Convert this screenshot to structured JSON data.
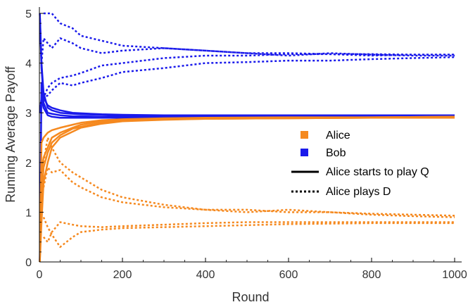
{
  "chart_data": {
    "type": "line",
    "xlabel": "Round",
    "ylabel": "Running Average Payoff",
    "xlim": [
      0,
      1000
    ],
    "ylim": [
      0,
      5
    ],
    "x_ticks": [
      0,
      200,
      400,
      600,
      800,
      1000
    ],
    "y_ticks": [
      0,
      1,
      2,
      3,
      4,
      5
    ],
    "grid": false,
    "legend_position": "center-right",
    "legend": {
      "players": [
        {
          "label": "Alice",
          "color": "#f5891f"
        },
        {
          "label": "Bob",
          "color": "#1a1aeb"
        }
      ],
      "styles": [
        {
          "label": "Alice starts to play Q",
          "dash": "solid"
        },
        {
          "label": "Alice plays D",
          "dash": "dotted"
        }
      ]
    },
    "series": [
      {
        "player": "Bob",
        "style": "solid",
        "x": [
          1,
          5,
          10,
          20,
          30,
          50,
          80,
          100,
          150,
          200,
          300,
          400,
          600,
          800,
          1000
        ],
        "y": [
          5,
          4.0,
          3.4,
          3.1,
          3.05,
          3.0,
          2.98,
          2.97,
          2.96,
          2.95,
          2.94,
          2.94,
          2.94,
          2.94,
          2.94
        ]
      },
      {
        "player": "Bob",
        "style": "solid",
        "x": [
          1,
          5,
          10,
          20,
          30,
          50,
          80,
          100,
          150,
          200,
          300,
          400,
          600,
          800,
          1000
        ],
        "y": [
          0,
          3.6,
          3.2,
          3.0,
          2.98,
          2.95,
          2.93,
          2.93,
          2.92,
          2.92,
          2.92,
          2.92,
          2.92,
          2.92,
          2.92
        ]
      },
      {
        "player": "Bob",
        "style": "solid",
        "x": [
          1,
          5,
          10,
          20,
          30,
          50,
          80,
          100,
          150,
          200,
          300,
          400,
          600,
          800,
          1000
        ],
        "y": [
          5,
          3.9,
          3.3,
          3.15,
          3.1,
          3.05,
          3.0,
          2.99,
          2.97,
          2.96,
          2.95,
          2.95,
          2.95,
          2.95,
          2.95
        ]
      },
      {
        "player": "Bob",
        "style": "solid",
        "x": [
          1,
          5,
          10,
          20,
          30,
          50,
          80,
          100,
          150,
          200,
          300,
          400,
          600,
          800,
          1000
        ],
        "y": [
          3,
          3.3,
          3.1,
          2.95,
          2.92,
          2.9,
          2.9,
          2.9,
          2.9,
          2.9,
          2.9,
          2.91,
          2.91,
          2.91,
          2.91
        ]
      },
      {
        "player": "Alice",
        "style": "solid",
        "x": [
          1,
          5,
          10,
          20,
          30,
          50,
          80,
          100,
          150,
          200,
          300,
          400,
          600,
          800,
          1000
        ],
        "y": [
          0,
          1.2,
          1.9,
          2.2,
          2.4,
          2.55,
          2.68,
          2.72,
          2.8,
          2.84,
          2.87,
          2.88,
          2.89,
          2.9,
          2.91
        ]
      },
      {
        "player": "Alice",
        "style": "solid",
        "x": [
          1,
          5,
          10,
          20,
          30,
          50,
          80,
          100,
          150,
          200,
          300,
          400,
          600,
          800,
          1000
        ],
        "y": [
          0,
          1.8,
          2.1,
          2.3,
          2.5,
          2.6,
          2.7,
          2.76,
          2.83,
          2.86,
          2.88,
          2.89,
          2.9,
          2.91,
          2.92
        ]
      },
      {
        "player": "Alice",
        "style": "solid",
        "x": [
          1,
          5,
          10,
          20,
          30,
          50,
          80,
          100,
          150,
          200,
          300,
          400,
          600,
          800,
          1000
        ],
        "y": [
          0,
          0.8,
          1.6,
          2.0,
          2.3,
          2.5,
          2.62,
          2.7,
          2.78,
          2.83,
          2.86,
          2.88,
          2.89,
          2.9,
          2.9
        ]
      },
      {
        "player": "Alice",
        "style": "solid",
        "x": [
          1,
          5,
          10,
          20,
          30,
          50,
          80,
          100,
          150,
          200,
          300,
          400,
          600,
          800,
          1000
        ],
        "y": [
          0,
          2.4,
          2.5,
          2.6,
          2.65,
          2.7,
          2.76,
          2.8,
          2.85,
          2.87,
          2.89,
          2.9,
          2.91,
          2.91,
          2.92
        ]
      },
      {
        "player": "Bob",
        "style": "dotted",
        "x": [
          10,
          20,
          30,
          50,
          80,
          100,
          150,
          200,
          300,
          400,
          500,
          600,
          700,
          800,
          900,
          1000
        ],
        "y": [
          5,
          5,
          5,
          4.8,
          4.7,
          4.55,
          4.45,
          4.35,
          4.3,
          4.25,
          4.2,
          4.2,
          4.18,
          4.18,
          4.17,
          4.17
        ]
      },
      {
        "player": "Bob",
        "style": "dotted",
        "x": [
          5,
          10,
          20,
          30,
          50,
          80,
          100,
          150,
          200,
          300,
          400,
          500,
          600,
          700,
          800,
          900,
          1000
        ],
        "y": [
          4.0,
          4.5,
          4.4,
          4.3,
          4.5,
          4.4,
          4.3,
          4.2,
          4.25,
          4.3,
          4.25,
          4.2,
          4.15,
          4.2,
          4.17,
          4.15,
          4.15
        ]
      },
      {
        "player": "Bob",
        "style": "dotted",
        "x": [
          5,
          10,
          20,
          30,
          50,
          80,
          100,
          150,
          200,
          300,
          400,
          500,
          600,
          700,
          800,
          900,
          1000
        ],
        "y": [
          3.4,
          3.3,
          3.5,
          3.6,
          3.7,
          3.75,
          3.8,
          3.95,
          4.0,
          4.1,
          4.15,
          4.15,
          4.18,
          4.18,
          4.15,
          4.17,
          4.17
        ]
      },
      {
        "player": "Bob",
        "style": "dotted",
        "x": [
          5,
          10,
          20,
          30,
          50,
          80,
          100,
          150,
          200,
          300,
          400,
          500,
          600,
          700,
          800,
          900,
          1000
        ],
        "y": [
          3.2,
          3.3,
          3.35,
          3.45,
          3.6,
          3.55,
          3.6,
          3.7,
          3.82,
          3.9,
          4.0,
          4.02,
          4.05,
          4.05,
          4.08,
          4.1,
          4.12
        ]
      },
      {
        "player": "Alice",
        "style": "dotted",
        "x": [
          10,
          20,
          30,
          50,
          80,
          100,
          150,
          200,
          300,
          400,
          500,
          600,
          700,
          800,
          900,
          1000
        ],
        "y": [
          2.0,
          2.5,
          2.3,
          2.0,
          1.8,
          1.7,
          1.45,
          1.3,
          1.15,
          1.05,
          1.05,
          1.0,
          1.0,
          0.97,
          0.95,
          0.93
        ]
      },
      {
        "player": "Alice",
        "style": "dotted",
        "x": [
          10,
          20,
          30,
          50,
          80,
          100,
          150,
          200,
          300,
          400,
          500,
          600,
          700,
          800,
          900,
          1000
        ],
        "y": [
          1.5,
          1.9,
          1.8,
          1.85,
          1.6,
          1.5,
          1.3,
          1.2,
          1.1,
          1.05,
          1.0,
          1.05,
          1.0,
          0.95,
          0.92,
          0.9
        ]
      },
      {
        "player": "Alice",
        "style": "dotted",
        "x": [
          10,
          20,
          30,
          50,
          80,
          100,
          150,
          200,
          300,
          400,
          500,
          600,
          700,
          800,
          900,
          1000
        ],
        "y": [
          0.5,
          0.4,
          0.6,
          0.8,
          0.75,
          0.72,
          0.7,
          0.72,
          0.75,
          0.78,
          0.8,
          0.8,
          0.8,
          0.8,
          0.8,
          0.8
        ]
      },
      {
        "player": "Alice",
        "style": "dotted",
        "x": [
          10,
          20,
          30,
          50,
          80,
          100,
          150,
          200,
          300,
          400,
          500,
          600,
          700,
          800,
          900,
          1000
        ],
        "y": [
          0.9,
          0.7,
          0.55,
          0.3,
          0.5,
          0.6,
          0.65,
          0.68,
          0.7,
          0.72,
          0.74,
          0.76,
          0.77,
          0.78,
          0.78,
          0.78
        ]
      }
    ]
  }
}
